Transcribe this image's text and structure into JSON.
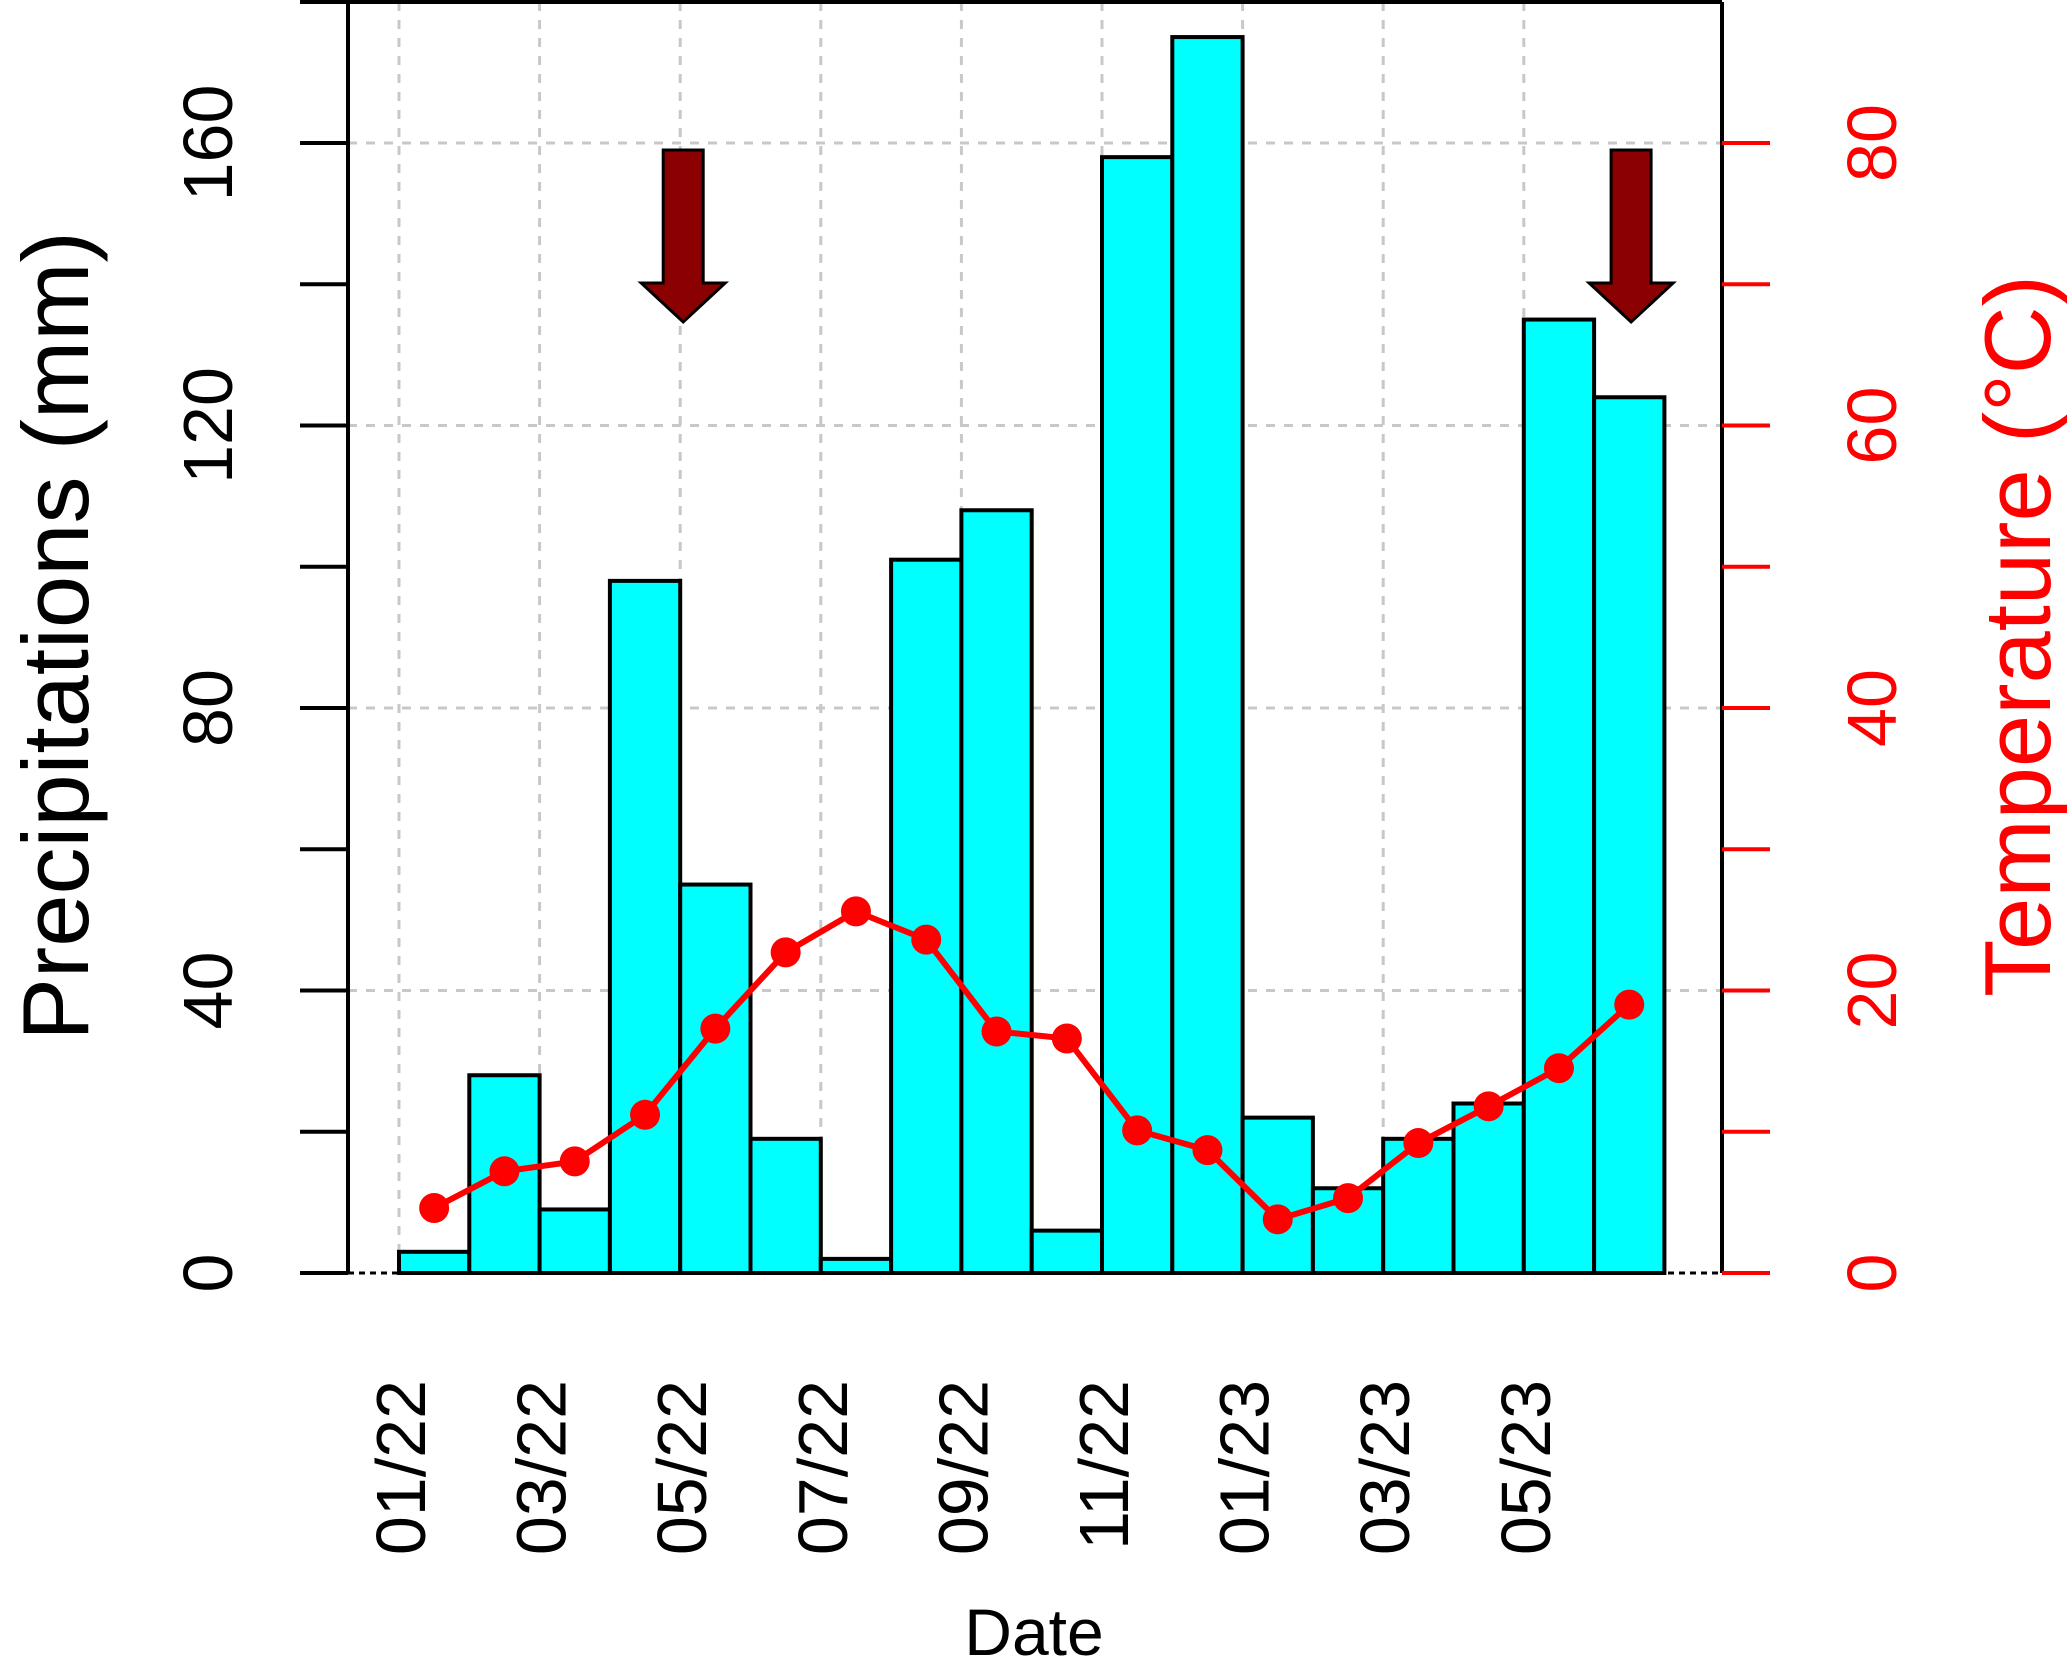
{
  "chart_data": {
    "type": "bar",
    "title": "",
    "xlabel": "Date",
    "ylabel_left": "Precipitations (mm)",
    "ylabel_right": "Temperature (°C)",
    "grid": true,
    "categories": [
      "01/22",
      "02/22",
      "03/22",
      "04/22",
      "05/22",
      "06/22",
      "07/22",
      "08/22",
      "09/22",
      "10/22",
      "11/22",
      "12/22",
      "01/23",
      "02/23",
      "03/23",
      "04/23",
      "05/23",
      "06/23"
    ],
    "x_tick_labels": [
      "01/22",
      "03/22",
      "05/22",
      "07/22",
      "09/22",
      "11/22",
      "01/23",
      "03/23",
      "05/23"
    ],
    "y_left": {
      "ticks": [
        0,
        40,
        80,
        120,
        160
      ],
      "ylim": [
        0,
        180
      ]
    },
    "y_right": {
      "ticks": [
        0,
        20,
        40,
        60,
        80
      ],
      "ylim": [
        0,
        90
      ]
    },
    "series": [
      {
        "name": "Precipitations",
        "type": "bar",
        "axis": "left",
        "color": "#00ffff",
        "values": [
          3,
          28,
          9,
          98,
          55,
          19,
          2,
          101,
          108,
          6,
          158,
          175,
          22,
          12,
          19,
          24,
          135,
          124
        ]
      },
      {
        "name": "Temperature",
        "type": "line",
        "axis": "right",
        "color": "#ff0000",
        "values": [
          4.6,
          7.2,
          7.9,
          11.2,
          17.3,
          22.7,
          25.6,
          23.6,
          17.1,
          16.6,
          10.1,
          8.7,
          3.8,
          5.3,
          9.2,
          11.8,
          14.5,
          19.0
        ]
      }
    ],
    "annotations": [
      {
        "type": "arrow",
        "direction": "down",
        "at": "05/22",
        "color": "#8b0000"
      },
      {
        "type": "arrow",
        "direction": "down",
        "at": "06/23",
        "color": "#8b0000"
      }
    ],
    "colors": {
      "axis_right": "#ff0000",
      "grid": "#c8c8c8",
      "arrow": "#8b0000"
    }
  }
}
